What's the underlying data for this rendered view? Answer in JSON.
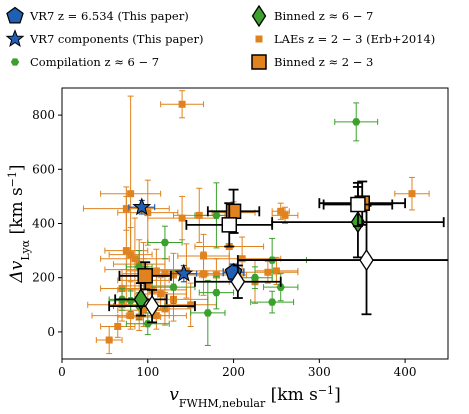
{
  "chart_data": {
    "type": "scatter",
    "xlabel": "v_FWHM,nebular [km s^-1]",
    "xlabel_main": "v",
    "xlabel_sub": "FWHM,nebular",
    "xlabel_unit": " [km s",
    "xlabel_unit_sup": "−1",
    "xlabel_unit_close": "]",
    "ylabel": "Δv_Lyα [km s^-1]",
    "ylabel_main": "Δv",
    "ylabel_sub": "Lyα",
    "ylabel_unit": " [km s",
    "ylabel_unit_sup": "−1",
    "ylabel_unit_close": "]",
    "xlim": [
      0,
      450
    ],
    "ylim": [
      -100,
      900
    ],
    "xticks": [
      0,
      100,
      200,
      300,
      400
    ],
    "yticks": [
      0,
      200,
      400,
      600,
      800
    ],
    "grid": false,
    "legend_position": "top",
    "colors": {
      "vr7": "#1f5fb4",
      "compilation": "#3ca02c",
      "binned_z6": "#3ca02c",
      "lae": "#e0821e",
      "binned_z2": "#e0821e",
      "open_marker": "#ffffff"
    },
    "legend": [
      {
        "marker": "pentagon",
        "color": "#1f5fb4",
        "label": "VR7 z = 6.534 (This paper)"
      },
      {
        "marker": "diamond",
        "color": "#3ca02c",
        "label": "Binned z ≈ 6 − 7"
      },
      {
        "marker": "star",
        "color": "#1f5fb4",
        "label": "VR7 components (This paper)"
      },
      {
        "marker": "square-small",
        "color": "#e0821e",
        "label": "LAEs z = 2 − 3 (Erb+2014)"
      },
      {
        "marker": "hexagon",
        "color": "#3ca02c",
        "label": "Compilation z ≈ 6 − 7"
      },
      {
        "marker": "square",
        "color": "#e0821e",
        "label": "Binned z ≈ 2 − 3"
      }
    ],
    "series": [
      {
        "id": "lae",
        "marker": "square-small",
        "color": "#e0821e",
        "points": [
          {
            "x": 140,
            "y": 840,
            "xerr": 25,
            "yerr": 50
          },
          {
            "x": 408,
            "y": 510,
            "xerr": 20,
            "yerr": 60
          },
          {
            "x": 80,
            "y": 510,
            "xerr": 35,
            "yerr": 360
          },
          {
            "x": 75,
            "y": 455,
            "xerr": 50,
            "yerr": 80
          },
          {
            "x": 100,
            "y": 440,
            "xerr": 35,
            "yerr": 120
          },
          {
            "x": 140,
            "y": 420,
            "xerr": 40,
            "yerr": 80
          },
          {
            "x": 200,
            "y": 440,
            "xerr": 25,
            "yerr": 40
          },
          {
            "x": 255,
            "y": 445,
            "xerr": 10,
            "yerr": 30
          },
          {
            "x": 260,
            "y": 430,
            "xerr": 15,
            "yerr": 30
          },
          {
            "x": 160,
            "y": 430,
            "xerr": 30,
            "yerr": 100
          },
          {
            "x": 75,
            "y": 300,
            "xerr": 25,
            "yerr": 200
          },
          {
            "x": 80,
            "y": 285,
            "xerr": 25,
            "yerr": 100
          },
          {
            "x": 85,
            "y": 270,
            "xerr": 40,
            "yerr": 150
          },
          {
            "x": 90,
            "y": 250,
            "xerr": 30,
            "yerr": 90
          },
          {
            "x": 95,
            "y": 230,
            "xerr": 45,
            "yerr": 100
          },
          {
            "x": 110,
            "y": 225,
            "xerr": 35,
            "yerr": 80
          },
          {
            "x": 120,
            "y": 215,
            "xerr": 50,
            "yerr": 120
          },
          {
            "x": 130,
            "y": 210,
            "xerr": 30,
            "yerr": 80
          },
          {
            "x": 145,
            "y": 225,
            "xerr": 50,
            "yerr": 100
          },
          {
            "x": 165,
            "y": 215,
            "xerr": 40,
            "yerr": 80
          },
          {
            "x": 180,
            "y": 210,
            "xerr": 35,
            "yerr": 60
          },
          {
            "x": 210,
            "y": 270,
            "xerr": 45,
            "yerr": 80
          },
          {
            "x": 225,
            "y": 185,
            "xerr": 30,
            "yerr": 80
          },
          {
            "x": 240,
            "y": 220,
            "xerr": 35,
            "yerr": 40
          },
          {
            "x": 165,
            "y": 280,
            "xerr": 30,
            "yerr": 80
          },
          {
            "x": 195,
            "y": 315,
            "xerr": 40,
            "yerr": 80
          },
          {
            "x": 95,
            "y": 190,
            "xerr": 30,
            "yerr": 80
          },
          {
            "x": 100,
            "y": 170,
            "xerr": 30,
            "yerr": 80
          },
          {
            "x": 105,
            "y": 155,
            "xerr": 40,
            "yerr": 60
          },
          {
            "x": 115,
            "y": 140,
            "xerr": 30,
            "yerr": 60
          },
          {
            "x": 130,
            "y": 120,
            "xerr": 40,
            "yerr": 80
          },
          {
            "x": 150,
            "y": 100,
            "xerr": 30,
            "yerr": 80
          },
          {
            "x": 70,
            "y": 100,
            "xerr": 40,
            "yerr": 60
          },
          {
            "x": 80,
            "y": 60,
            "xerr": 45,
            "yerr": 50
          },
          {
            "x": 90,
            "y": 55,
            "xerr": 25,
            "yerr": 50
          },
          {
            "x": 120,
            "y": 85,
            "xerr": 30,
            "yerr": 60
          },
          {
            "x": 65,
            "y": 20,
            "xerr": 20,
            "yerr": 40
          },
          {
            "x": 55,
            "y": -30,
            "xerr": 15,
            "yerr": 50
          },
          {
            "x": 95,
            "y": 80,
            "xerr": 30,
            "yerr": 60
          },
          {
            "x": 110,
            "y": 60,
            "xerr": 35,
            "yerr": 50
          },
          {
            "x": 70,
            "y": 160,
            "xerr": 25,
            "yerr": 70
          },
          {
            "x": 250,
            "y": 225,
            "xerr": 25,
            "yerr": 50
          }
        ]
      },
      {
        "id": "compilation",
        "marker": "hexagon",
        "color": "#3ca02c",
        "points": [
          {
            "x": 343,
            "y": 775,
            "xerr": 25,
            "yerr": 70
          },
          {
            "x": 180,
            "y": 430,
            "xerr": 25,
            "yerr": 120
          },
          {
            "x": 120,
            "y": 330,
            "xerr": 20,
            "yerr": 60
          },
          {
            "x": 245,
            "y": 265,
            "xerr": 40,
            "yerr": 80
          },
          {
            "x": 225,
            "y": 200,
            "xerr": 20,
            "yerr": 40
          },
          {
            "x": 90,
            "y": 240,
            "xerr": 15,
            "yerr": 60
          },
          {
            "x": 180,
            "y": 145,
            "xerr": 20,
            "yerr": 60
          },
          {
            "x": 255,
            "y": 165,
            "xerr": 20,
            "yerr": 50
          },
          {
            "x": 245,
            "y": 110,
            "xerr": 25,
            "yerr": 40
          },
          {
            "x": 170,
            "y": 70,
            "xerr": 20,
            "yerr": 120
          },
          {
            "x": 100,
            "y": 30,
            "xerr": 25,
            "yerr": 40
          },
          {
            "x": 80,
            "y": 115,
            "xerr": 25,
            "yerr": 40
          },
          {
            "x": 90,
            "y": 95,
            "xerr": 30,
            "yerr": 50
          },
          {
            "x": 130,
            "y": 165,
            "xerr": 25,
            "yerr": 60
          },
          {
            "x": 70,
            "y": 120,
            "xerr": 15,
            "yerr": 40
          }
        ]
      },
      {
        "id": "vr7_components",
        "marker": "star",
        "color": "#1f5fb4",
        "points": [
          {
            "x": 93,
            "y": 460,
            "xerr": 15,
            "yerr": 25
          },
          {
            "x": 142,
            "y": 215,
            "xerr": 15,
            "yerr": 30
          }
        ]
      },
      {
        "id": "vr7",
        "marker": "pentagon",
        "color": "#1f5fb4",
        "points": [
          {
            "x": 200,
            "y": 220,
            "xerr": 12,
            "yerr": 30
          }
        ]
      },
      {
        "id": "binned_z6",
        "marker": "diamond",
        "color": "#3ca02c",
        "points": [
          {
            "x": 345,
            "y": 405,
            "xerr": 100,
            "yerr": 130,
            "fill": "color"
          },
          {
            "x": 92,
            "y": 120,
            "xerr": 30,
            "yerr": 60,
            "fill": "color"
          },
          {
            "x": 355,
            "y": 265,
            "xerr": 150,
            "yerr": 200,
            "fill": "open"
          },
          {
            "x": 205,
            "y": 185,
            "xerr": 50,
            "yerr": 60,
            "fill": "open"
          },
          {
            "x": 105,
            "y": 95,
            "xerr": 50,
            "yerr": 60,
            "fill": "open"
          }
        ]
      },
      {
        "id": "binned_z2",
        "marker": "square",
        "color": "#e0821e",
        "points": [
          {
            "x": 350,
            "y": 475,
            "xerr": 50,
            "yerr": 80,
            "fill": "color"
          },
          {
            "x": 200,
            "y": 445,
            "xerr": 30,
            "yerr": 80,
            "fill": "color"
          },
          {
            "x": 97,
            "y": 207,
            "xerr": 30,
            "yerr": 50,
            "fill": "color"
          },
          {
            "x": 345,
            "y": 470,
            "xerr": 40,
            "yerr": 80,
            "fill": "open"
          },
          {
            "x": 195,
            "y": 395,
            "xerr": 50,
            "yerr": 80,
            "fill": "open"
          }
        ]
      }
    ]
  }
}
